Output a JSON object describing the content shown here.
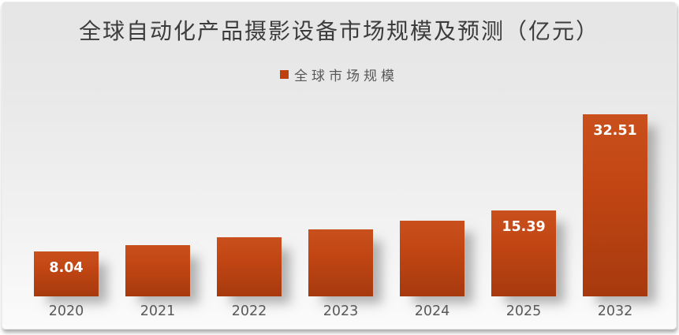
{
  "chart": {
    "title": "全球自动化产品摄影设备市场规模及预测（亿元）",
    "legend_label": "全球市场规模"
  },
  "chart_data": {
    "type": "bar",
    "title": "全球自动化产品摄影设备市场规模及预测（亿元）",
    "legend": [
      "全球市场规模"
    ],
    "legend_position": "top-center",
    "categories": [
      "2020",
      "2021",
      "2022",
      "2023",
      "2024",
      "2025",
      "2032"
    ],
    "series": [
      {
        "name": "全球市场规模",
        "values": [
          8.04,
          9.2,
          10.6,
          12.0,
          13.5,
          15.39,
          32.51
        ]
      }
    ],
    "data_labels": [
      "8.04",
      "",
      "",
      "",
      "",
      "15.39",
      "32.51"
    ],
    "value_note": "2021-2024 values estimated from bar heights; labels shown only for 2020, 2025, 2032",
    "ylim": [
      0,
      33.2
    ],
    "grid": false,
    "y_axis_visible": false,
    "colors": {
      "bar_gradient_top": "#c9501c",
      "bar_gradient_bottom": "#a63a0e",
      "legend_swatch": "#be400f",
      "bar_label_text": "#ffffff",
      "axis_text": "#595959",
      "title_text": "#3c3c3c",
      "background_top": "#e5e5e5",
      "background_bottom": "#fbfbfb"
    }
  }
}
